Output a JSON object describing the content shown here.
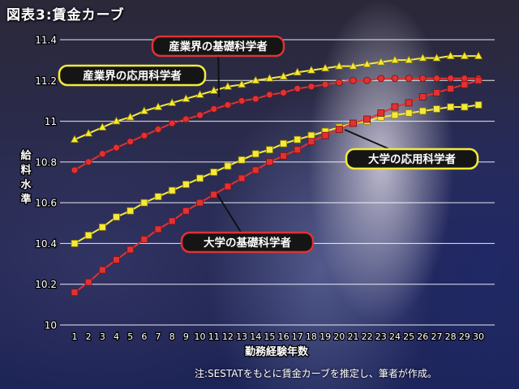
{
  "title": "図表3:賃金カーブ",
  "note": "注:SESTATをもとに賃金カーブを推定し、筆者が作成。",
  "colors": {
    "red": "#e03232",
    "yellow": "#f5ea3a",
    "grid": "#ffffff"
  },
  "chart_data": {
    "type": "line",
    "title": "図表3:賃金カーブ",
    "xlabel": "勤務経験年数",
    "ylabel": "給料水準",
    "x": [
      1,
      2,
      3,
      4,
      5,
      6,
      7,
      8,
      9,
      10,
      11,
      12,
      13,
      14,
      15,
      16,
      17,
      18,
      19,
      20,
      21,
      22,
      23,
      24,
      25,
      26,
      27,
      28,
      29,
      30
    ],
    "xlim": [
      1,
      30
    ],
    "ylim": [
      10,
      11.4
    ],
    "yticks": [
      "10",
      "10.2",
      "10.4",
      "10.6",
      "10.8",
      "11",
      "11.2",
      "11.4"
    ],
    "grid": true,
    "series": [
      {
        "name": "産業界の応用科学者",
        "color": "#f5ea3a",
        "marker": "triangle",
        "values": [
          10.91,
          10.94,
          10.97,
          11.0,
          11.02,
          11.05,
          11.07,
          11.09,
          11.11,
          11.13,
          11.15,
          11.17,
          11.18,
          11.2,
          11.21,
          11.22,
          11.24,
          11.25,
          11.26,
          11.27,
          11.27,
          11.28,
          11.29,
          11.3,
          11.3,
          11.31,
          11.31,
          11.32,
          11.32,
          11.32
        ]
      },
      {
        "name": "産業界の基礎科学者",
        "color": "#e03232",
        "marker": "circle",
        "values": [
          10.76,
          10.8,
          10.84,
          10.87,
          10.9,
          10.93,
          10.96,
          10.99,
          11.01,
          11.03,
          11.06,
          11.08,
          11.1,
          11.11,
          11.13,
          11.14,
          11.16,
          11.17,
          11.18,
          11.19,
          11.2,
          11.2,
          11.21,
          11.21,
          11.21,
          11.21,
          11.21,
          11.21,
          11.21,
          11.21
        ]
      },
      {
        "name": "大学の応用科学者",
        "color": "#f5ea3a",
        "marker": "square",
        "values": [
          10.4,
          10.44,
          10.48,
          10.53,
          10.56,
          10.6,
          10.63,
          10.66,
          10.69,
          10.72,
          10.75,
          10.78,
          10.81,
          10.84,
          10.86,
          10.89,
          10.91,
          10.93,
          10.95,
          10.97,
          10.99,
          11.0,
          11.02,
          11.03,
          11.04,
          11.05,
          11.06,
          11.07,
          11.07,
          11.08
        ]
      },
      {
        "name": "大学の基礎科学者",
        "color": "#e03232",
        "marker": "square",
        "values": [
          10.16,
          10.21,
          10.27,
          10.32,
          10.37,
          10.42,
          10.47,
          10.51,
          10.56,
          10.6,
          10.64,
          10.68,
          10.72,
          10.76,
          10.8,
          10.83,
          10.86,
          10.9,
          10.93,
          10.96,
          10.99,
          11.01,
          11.04,
          11.07,
          11.09,
          11.12,
          11.14,
          11.16,
          11.18,
          11.2
        ]
      }
    ],
    "annotations": [
      {
        "label": "産業界の基礎科学者",
        "series": 1,
        "box": "red"
      },
      {
        "label": "産業界の応用科学者",
        "series": 0,
        "box": "yellow"
      },
      {
        "label": "大学の応用科学者",
        "series": 2,
        "box": "yellow"
      },
      {
        "label": "大学の基礎科学者",
        "series": 3,
        "box": "red"
      }
    ]
  }
}
